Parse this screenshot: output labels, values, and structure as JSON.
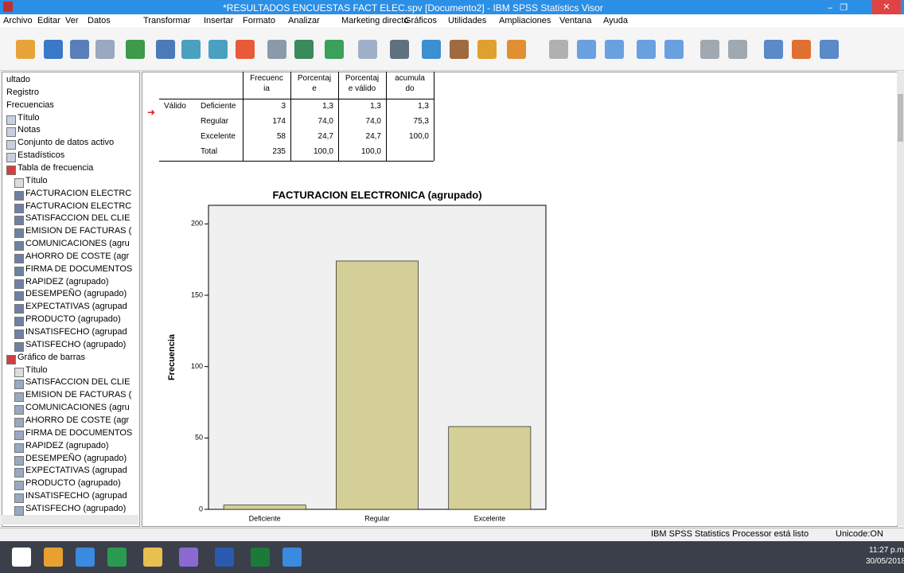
{
  "window": {
    "title": "*RESULTADOS ENCUESTAS FACT ELEC.spv [Documento2] - IBM SPSS Statistics Visor"
  },
  "menu": [
    "Archivo",
    "Editar",
    "Ver",
    "Datos",
    "Transformar",
    "Insertar",
    "Formato",
    "Analizar",
    "Marketing directo",
    "Gráficos",
    "Utilidades",
    "Ampliaciones",
    "Ventana",
    "Ayuda"
  ],
  "tree": {
    "top": [
      "ultado",
      "Registro",
      "Frecuencias"
    ],
    "frecuencias": [
      "Título",
      "Notas",
      "Conjunto de datos activo",
      "Estadísticos"
    ],
    "tabla": {
      "label": "Tabla de frecuencia",
      "items": [
        "Título",
        "FACTURACION ELECTRC",
        "FACTURACION ELECTRC",
        "SATISFACCION DEL CLIE",
        "EMISION DE FACTURAS (",
        "COMUNICACIONES (agru",
        "AHORRO DE COSTE (agr",
        "FIRMA DE DOCUMENTOS",
        "RAPIDEZ (agrupado)",
        "DESEMPEÑO (agrupado)",
        "EXPECTATIVAS (agrupad",
        "PRODUCTO (agrupado)",
        "INSATISFECHO (agrupad",
        "SATISFECHO (agrupado)"
      ]
    },
    "grafico": {
      "label": "Gráfico de barras",
      "items": [
        "Título",
        "SATISFACCION DEL CLIE",
        "EMISION DE FACTURAS (",
        "COMUNICACIONES (agru",
        "AHORRO DE COSTE (agr",
        "FIRMA DE DOCUMENTOS",
        "RAPIDEZ (agrupado)",
        "DESEMPEÑO (agrupado)",
        "EXPECTATIVAS (agrupad",
        "PRODUCTO (agrupado)",
        "INSATISFECHO (agrupad",
        "SATISFECHO (agrupado)"
      ]
    }
  },
  "table": {
    "header": [
      [
        "Frecuenc",
        "ia"
      ],
      [
        "Porcentaj",
        "e"
      ],
      [
        "Porcentaj",
        "e válido"
      ],
      [
        "acumula",
        "do"
      ]
    ],
    "group": "Válido",
    "rows": [
      [
        "Deficiente",
        "3",
        "1,3",
        "1,3",
        "1,3"
      ],
      [
        "Regular",
        "174",
        "74,0",
        "74,0",
        "75,3"
      ],
      [
        "Excelente",
        "58",
        "24,7",
        "24,7",
        "100,0"
      ],
      [
        "Total",
        "235",
        "100,0",
        "100,0"
      ]
    ]
  },
  "chart_data": {
    "type": "bar",
    "title": "FACTURACION ELECTRONICA (agrupado)",
    "y_label": "Frecuencia",
    "categories": [
      "Deficiente",
      "Regular",
      "Excelente"
    ],
    "values": [
      3,
      174,
      58
    ],
    "color": "#d4cf97",
    "ylim": [
      0,
      213
    ],
    "yticks": [
      0,
      50,
      100,
      150,
      200
    ]
  },
  "status": {
    "message": "IBM SPSS Statistics Processor está listo",
    "unicode": "Unicode:ON"
  },
  "taskbar": {
    "time": "11:27 p.m.",
    "date": "30/05/2018"
  }
}
